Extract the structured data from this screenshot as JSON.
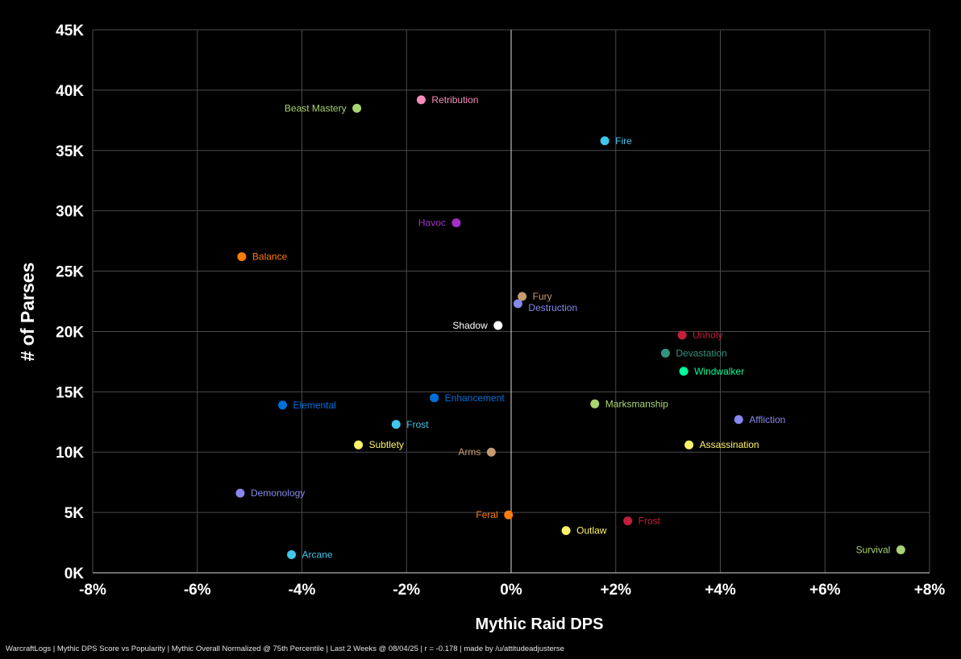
{
  "chart_data": {
    "type": "scatter",
    "title": "",
    "xlabel": "Mythic Raid DPS",
    "ylabel": "# of Parses",
    "xlim": [
      -8,
      8
    ],
    "ylim": [
      0,
      45000
    ],
    "x_ticks": [
      -8,
      -6,
      -4,
      -2,
      0,
      2,
      4,
      6,
      8
    ],
    "x_tick_labels": [
      "-8%",
      "-6%",
      "-4%",
      "-2%",
      "0%",
      "+2%",
      "+4%",
      "+6%",
      "+8%"
    ],
    "y_ticks": [
      0,
      5000,
      10000,
      15000,
      20000,
      25000,
      30000,
      35000,
      40000,
      45000
    ],
    "y_tick_labels": [
      "0K",
      "5K",
      "10K",
      "15K",
      "20K",
      "25K",
      "30K",
      "35K",
      "40K",
      "45K"
    ],
    "grid": true,
    "points": [
      {
        "label": "Retribution",
        "x": -1.72,
        "y": 39200,
        "color": "#F48CBA",
        "side": "right"
      },
      {
        "label": "Beast Mastery",
        "x": -2.95,
        "y": 38500,
        "color": "#AAD372",
        "side": "left"
      },
      {
        "label": "Fire",
        "x": 1.79,
        "y": 35800,
        "color": "#3FC7EB",
        "side": "right"
      },
      {
        "label": "Havoc",
        "x": -1.05,
        "y": 29000,
        "color": "#A330C9",
        "side": "left"
      },
      {
        "label": "Balance",
        "x": -5.15,
        "y": 26200,
        "color": "#FF7C0A",
        "side": "right"
      },
      {
        "label": "Fury",
        "x": 0.21,
        "y": 22900,
        "color": "#C69B6D",
        "side": "right"
      },
      {
        "label": "Destruction",
        "x": 0.13,
        "y": 22300,
        "color": "#8788EE",
        "side": "right-below"
      },
      {
        "label": "Shadow",
        "x": -0.25,
        "y": 20500,
        "color": "#FFFFFF",
        "side": "left"
      },
      {
        "label": "Unholy",
        "x": 3.27,
        "y": 19700,
        "color": "#C41E3A",
        "side": "right"
      },
      {
        "label": "Devastation",
        "x": 2.95,
        "y": 18200,
        "color": "#33937F",
        "side": "right"
      },
      {
        "label": "Windwalker",
        "x": 3.3,
        "y": 16700,
        "color": "#00FF98",
        "side": "right"
      },
      {
        "label": "Enhancement",
        "x": -1.47,
        "y": 14500,
        "color": "#0070DD",
        "side": "right"
      },
      {
        "label": "Elemental",
        "x": -4.37,
        "y": 13900,
        "color": "#0070DD",
        "side": "right"
      },
      {
        "label": "Marksmanship",
        "x": 1.6,
        "y": 14000,
        "color": "#AAD372",
        "side": "right"
      },
      {
        "label": "Affliction",
        "x": 4.35,
        "y": 12700,
        "color": "#8788EE",
        "side": "right"
      },
      {
        "label": "Frost",
        "x": -2.2,
        "y": 12300,
        "color": "#3FC7EB",
        "side": "right"
      },
      {
        "label": "Subtlety",
        "x": -2.92,
        "y": 10600,
        "color": "#FFF468",
        "side": "right"
      },
      {
        "label": "Assassination",
        "x": 3.4,
        "y": 10600,
        "color": "#FFF468",
        "side": "right"
      },
      {
        "label": "Arms",
        "x": -0.38,
        "y": 10000,
        "color": "#C69B6D",
        "side": "left"
      },
      {
        "label": "Demonology",
        "x": -5.18,
        "y": 6600,
        "color": "#8788EE",
        "side": "right"
      },
      {
        "label": "Feral",
        "x": -0.05,
        "y": 4800,
        "color": "#FF7C0A",
        "side": "left"
      },
      {
        "label": "Frost",
        "x": 2.23,
        "y": 4300,
        "color": "#C41E3A",
        "side": "right"
      },
      {
        "label": "Outlaw",
        "x": 1.05,
        "y": 3500,
        "color": "#FFF468",
        "side": "right"
      },
      {
        "label": "Arcane",
        "x": -4.2,
        "y": 1500,
        "color": "#3FC7EB",
        "side": "right"
      },
      {
        "label": "Survival",
        "x": 7.45,
        "y": 1900,
        "color": "#AAD372",
        "side": "left"
      }
    ]
  },
  "footer": "WarcraftLogs | Mythic DPS Score vs Popularity | Mythic Overall Normalized @ 75th Percentile | Last 2 Weeks @ 08/04/25 | r = -0.178 | made by /u/attitudeadjusterse"
}
